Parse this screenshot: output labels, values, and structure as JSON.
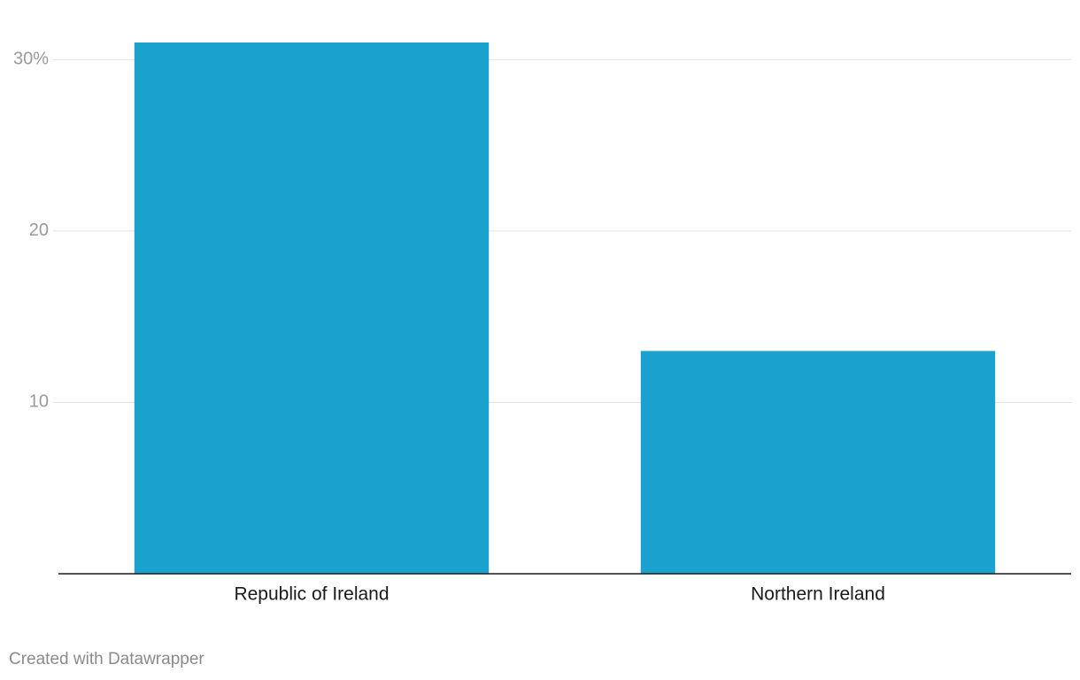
{
  "chart_data": {
    "type": "bar",
    "categories": [
      "Republic of Ireland",
      "Northern Ireland"
    ],
    "values": [
      31,
      13
    ],
    "color": "#1aa1cd",
    "ylim": [
      0,
      31
    ],
    "yticks": [
      10,
      20,
      {
        "value": 30,
        "label": "30%"
      }
    ],
    "grid": true,
    "credit": "Created with Datawrapper"
  }
}
